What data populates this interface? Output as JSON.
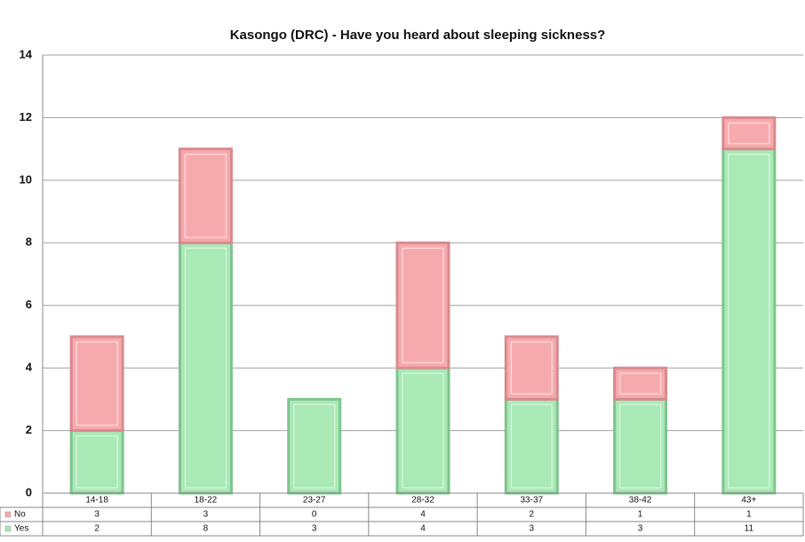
{
  "chart_data": {
    "type": "stacked_bar",
    "title": "Kasongo (DRC)  - Have you heard about sleeping sickness?",
    "categories": [
      "14-18",
      "18-22",
      "23-27",
      "28-32",
      "33-37",
      "38-42",
      "43+"
    ],
    "series": [
      {
        "name": "No",
        "color": "#f7aaae",
        "values": [
          3,
          3,
          0,
          4,
          2,
          1,
          1
        ]
      },
      {
        "name": "Yes",
        "color": "#a9e9b6",
        "values": [
          2,
          8,
          3,
          4,
          3,
          3,
          11
        ]
      }
    ],
    "ylim": [
      0,
      14
    ],
    "yticks": [
      0,
      2,
      4,
      6,
      8,
      10,
      12,
      14
    ],
    "grid": true
  }
}
